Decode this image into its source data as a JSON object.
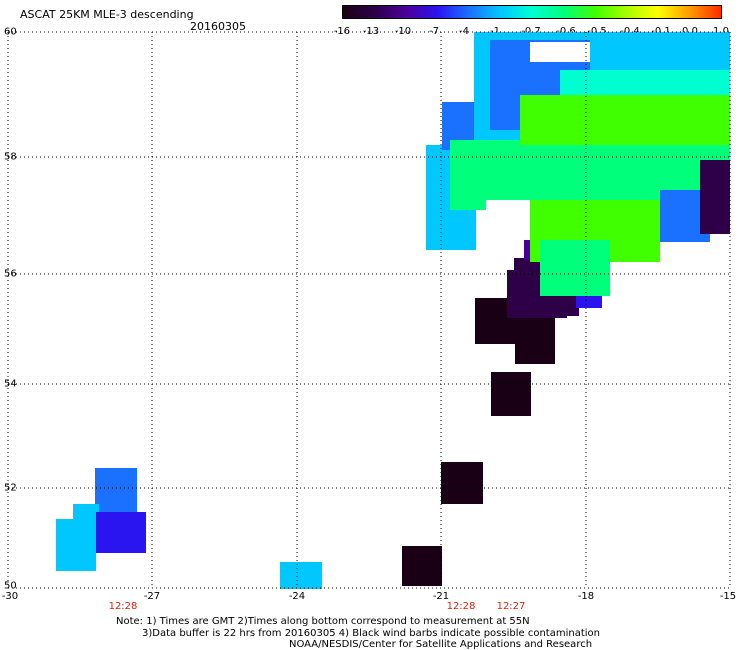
{
  "header": {
    "title": "ASCAT 25KM MLE-3 descending",
    "date": "20160305"
  },
  "colorbar": {
    "labels": [
      "-16",
      "-13",
      "-10",
      "-7",
      "-4",
      "-1",
      "-0.7",
      "-0.6",
      "-0.5",
      "-0.4",
      "-0.1",
      "0.0",
      "1.0"
    ],
    "colors": [
      "#1a0014",
      "#2e0048",
      "#4b009a",
      "#2a14f0",
      "#1a70ff",
      "#00c8ff",
      "#00ffd0",
      "#00ff7a",
      "#40ff00",
      "#a8ff00",
      "#ffff00",
      "#ff9a00",
      "#ff2a00"
    ]
  },
  "axes": {
    "lat_ticks": [
      "60",
      "58",
      "56",
      "54",
      "52",
      "50"
    ],
    "lon_ticks": [
      "-30",
      "-27",
      "-24",
      "-21",
      "-18",
      "-15"
    ],
    "lat_range": [
      50,
      60
    ],
    "lon_range": [
      -30,
      -15
    ]
  },
  "pass_times": [
    "12:28",
    "12:28",
    "12:27"
  ],
  "notes": {
    "line1": "Note: 1) Times are GMT 2)Times along bottom correspond to measurement at 55N",
    "line2": "3)Data buffer is 22 hrs from 20160305 4) Black wind barbs indicate possible contamination",
    "line3": "NOAA/NESDIS/Center for Satellite Applications and Research"
  }
}
